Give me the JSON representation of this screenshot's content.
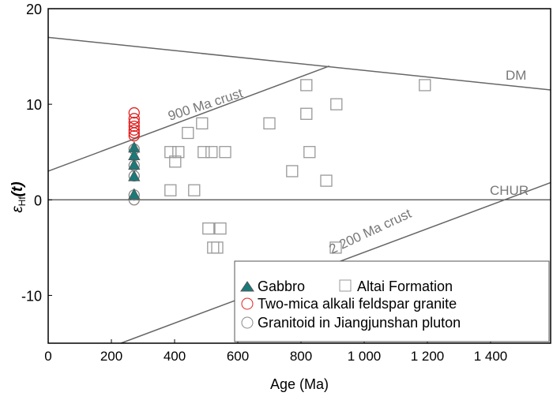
{
  "chart_data": {
    "type": "scatter",
    "xlabel": "Age (Ma)",
    "ylabel": "ε",
    "ylabel_sub": "Hf",
    "ylabel_paren": "(t)",
    "xlim": [
      0,
      1590
    ],
    "ylim": [
      -15,
      20
    ],
    "xticks": [
      0,
      200,
      400,
      600,
      800,
      1000,
      1200,
      1400
    ],
    "xtick_labels": [
      "0",
      "200",
      "400",
      "600",
      "800",
      "1 000",
      "1 200",
      "1 400"
    ],
    "yticks": [
      -10,
      0,
      10,
      20
    ],
    "ytick_labels": [
      "-10",
      "0",
      "10",
      "20"
    ],
    "reference_lines": [
      {
        "name": "DM",
        "points": [
          [
            0,
            17
          ],
          [
            1590,
            11.5
          ]
        ]
      },
      {
        "name": "900 Ma crust",
        "points": [
          [
            0,
            3
          ],
          [
            890,
            14
          ]
        ]
      },
      {
        "name": "CHUR",
        "points": [
          [
            0,
            0
          ],
          [
            1590,
            0
          ]
        ]
      },
      {
        "name": "2 200 Ma crust",
        "points": [
          [
            230,
            -15
          ],
          [
            1590,
            1.8
          ]
        ]
      }
    ],
    "series": [
      {
        "name": "Altai Formation",
        "marker": "square",
        "color": "#999999",
        "points": [
          [
            817,
            12
          ],
          [
            1192,
            12
          ],
          [
            912,
            10
          ],
          [
            487,
            8
          ],
          [
            700,
            8
          ],
          [
            442,
            7
          ],
          [
            817,
            9
          ],
          [
            387,
            5
          ],
          [
            412,
            5
          ],
          [
            402,
            4
          ],
          [
            492,
            5
          ],
          [
            517,
            5
          ],
          [
            560,
            5
          ],
          [
            827,
            5
          ],
          [
            772,
            3
          ],
          [
            880,
            2
          ],
          [
            387,
            1
          ],
          [
            462,
            1
          ],
          [
            507,
            -3
          ],
          [
            545,
            -3
          ],
          [
            522,
            -5
          ],
          [
            535,
            -5
          ],
          [
            910,
            -5
          ]
        ]
      },
      {
        "name": "Granitoid in Jiangjunshan pluton",
        "marker": "circle",
        "color": "#888888",
        "points": [
          [
            272,
            5.3
          ],
          [
            272,
            3.6
          ],
          [
            272,
            2.5
          ],
          [
            272,
            0.5
          ],
          [
            272,
            0
          ]
        ]
      },
      {
        "name": "Two-mica alkali feldspar granite",
        "marker": "circle",
        "color": "#e02020",
        "points": [
          [
            272,
            9.1
          ],
          [
            272,
            8.5
          ],
          [
            272,
            8.1
          ],
          [
            272,
            7.7
          ],
          [
            272,
            7.3
          ],
          [
            272,
            7.0
          ],
          [
            272,
            6.7
          ]
        ]
      },
      {
        "name": "Gabbro",
        "marker": "triangle",
        "color": "#1a7a78",
        "points": [
          [
            272,
            5.4
          ],
          [
            272,
            4.6
          ],
          [
            272,
            3.6
          ],
          [
            272,
            2.4
          ],
          [
            272,
            0.5
          ]
        ]
      }
    ],
    "legend": {
      "placement": "bottom-right",
      "entries": [
        "Gabbro",
        "Altai Formation",
        "Two-mica alkali feldspar granite",
        "Granitoid in Jiangjunshan pluton"
      ]
    }
  }
}
